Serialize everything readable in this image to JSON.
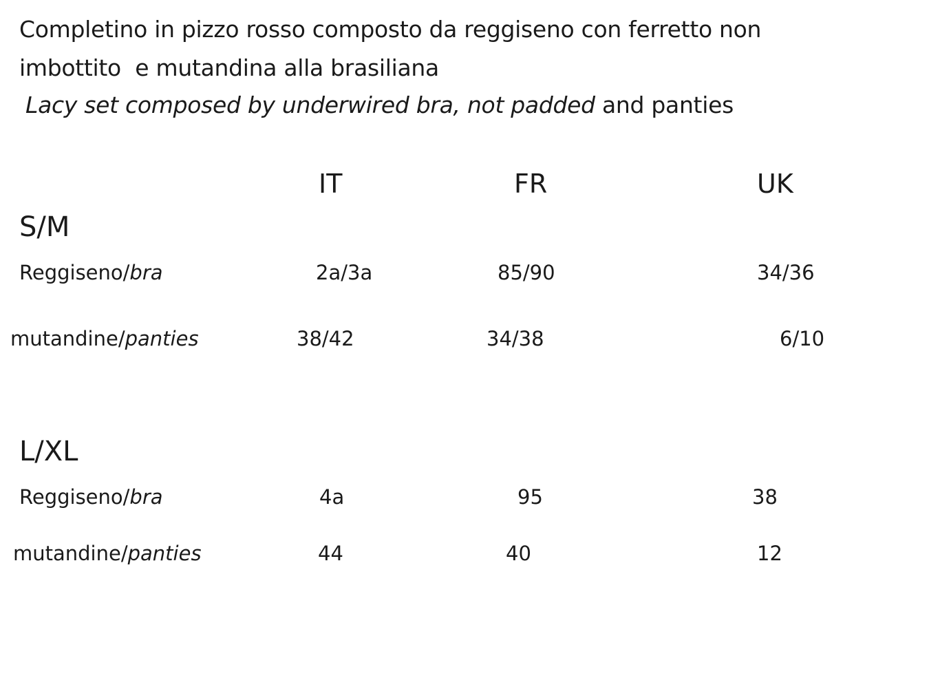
{
  "title": {
    "lines": [
      "Completino in pizzo rosso composto da reggiseno con ferretto non",
      "imbottito  e mutandina alla brasiliana"
    ],
    "english_italic": "Lacy set composed by underwired bra, not padded",
    "english_plain": "and panties"
  },
  "table": {
    "columns": [
      "IT",
      "FR",
      "UK"
    ],
    "groups": [
      {
        "size": "S/M",
        "rows": [
          {
            "label": "Reggiseno/",
            "label_italic": "bra",
            "values": [
              "2a/3a",
              "85/90",
              "34/36"
            ]
          },
          {
            "label": "mutandine/",
            "label_italic": "panties",
            "values": [
              "38/42",
              "34/38",
              "6/10"
            ]
          }
        ]
      },
      {
        "size": "L/XL",
        "rows": [
          {
            "label": "Reggiseno/",
            "label_italic": "bra",
            "values": [
              "4a",
              "95",
              "38"
            ]
          },
          {
            "label": "mutandine/",
            "label_italic": "panties",
            "values": [
              "44",
              "40",
              "12"
            ]
          }
        ]
      }
    ]
  }
}
